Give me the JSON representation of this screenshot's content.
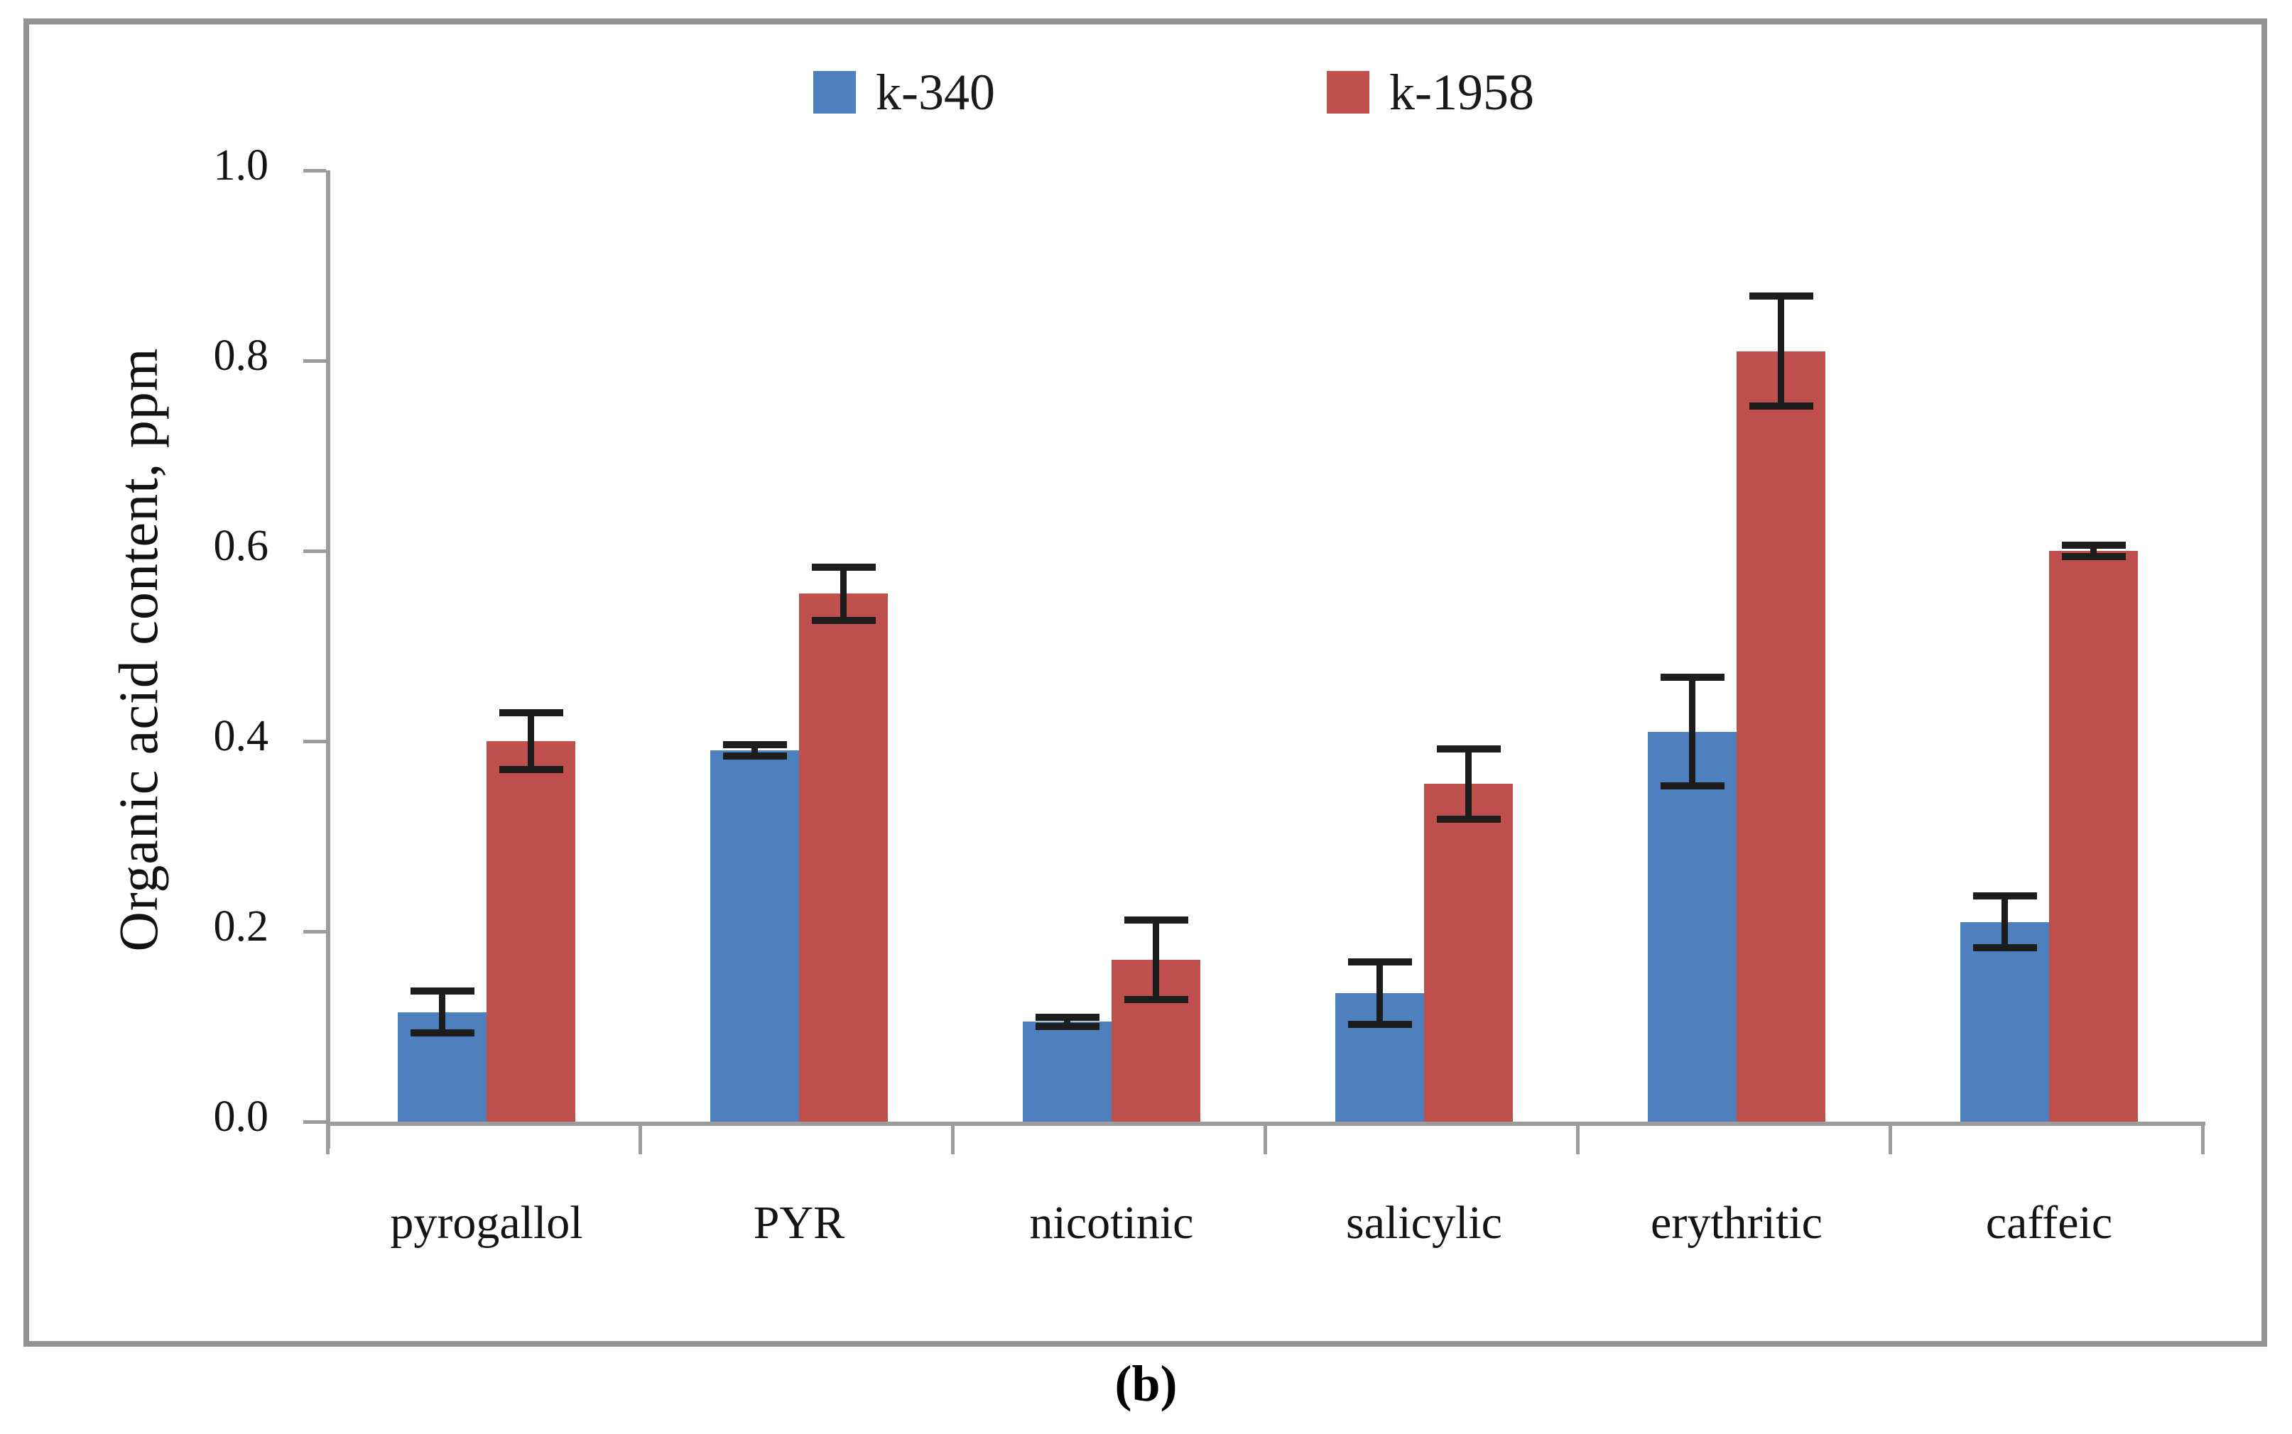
{
  "figure": {
    "caption": "(b)",
    "frame_color": "#929292",
    "background": "#ffffff",
    "axis_color": "#9c9c9c",
    "error_bar_color": "#1d1d1d"
  },
  "legend": [
    {
      "label": "k-340",
      "color": "#4d80bc"
    },
    {
      "label": "k-1958",
      "color": "#c0504d"
    }
  ],
  "y_axis": {
    "title": "Organic acid content, ppm",
    "min": 0.0,
    "max": 1.0,
    "step": 0.2,
    "tick_labels": [
      "0.0",
      "0.2",
      "0.4",
      "0.6",
      "0.8",
      "1.0"
    ]
  },
  "chart_data": {
    "type": "bar",
    "title": "",
    "xlabel": "",
    "ylabel": "Organic acid content, ppm",
    "ylim": [
      0.0,
      1.0
    ],
    "grid": false,
    "legend_position": "top-center",
    "error_bars": true,
    "categories": [
      "pyrogallol",
      "PYR",
      "nicotinic",
      "salicylic",
      "erythritic",
      "caffeic"
    ],
    "series": [
      {
        "name": "k-340",
        "color": "#4d80bc",
        "values": [
          0.115,
          0.39,
          0.105,
          0.135,
          0.41,
          0.21
        ],
        "errors": [
          0.022,
          0.006,
          0.005,
          0.033,
          0.057,
          0.027
        ]
      },
      {
        "name": "k-1958",
        "color": "#c0504d",
        "values": [
          0.4,
          0.555,
          0.17,
          0.355,
          0.81,
          0.6
        ],
        "errors": [
          0.03,
          0.028,
          0.042,
          0.037,
          0.058,
          0.006
        ]
      }
    ]
  }
}
